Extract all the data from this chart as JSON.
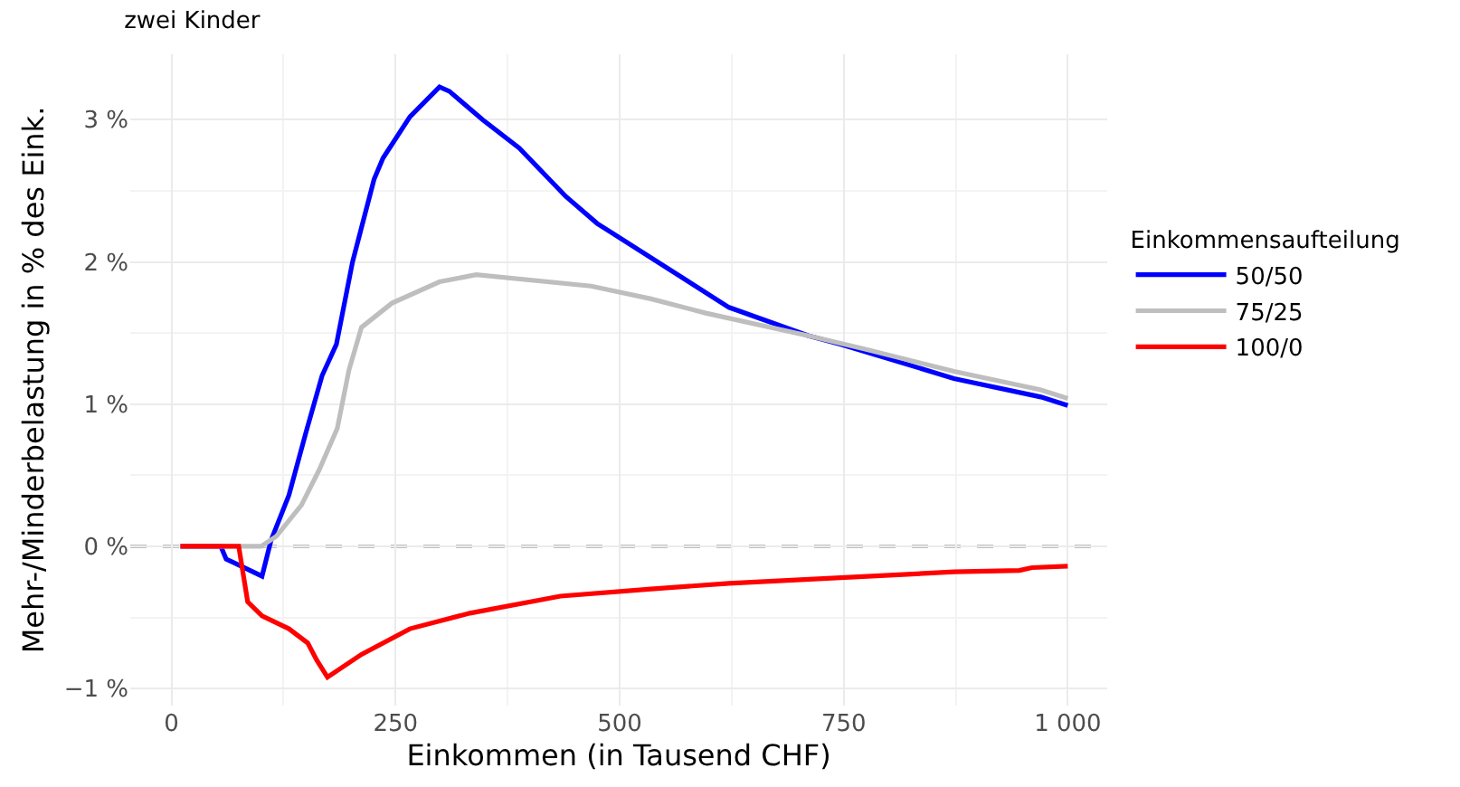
{
  "chart_data": {
    "type": "line",
    "title": "zwei Kinder",
    "xlabel": "Einkommen (in Tausend CHF)",
    "ylabel": "Mehr-/Minderbelastung in % des Eink.",
    "legend_title": "Einkommensaufteilung",
    "xlim": [
      -46,
      1044
    ],
    "ylim": [
      -1.12,
      3.46
    ],
    "xticks": [
      0,
      250,
      500,
      750,
      {
        "value": 1000,
        "label": "1 000"
      }
    ],
    "yticks": [
      {
        "value": -1,
        "label": "−1 %"
      },
      {
        "value": 0,
        "label": "0 %"
      },
      {
        "value": 1,
        "label": "1 %"
      },
      {
        "value": 2,
        "label": "2 %"
      },
      {
        "value": 3,
        "label": "3 %"
      }
    ],
    "grid": true,
    "legend": "right",
    "line_style": "solid",
    "marker": "none",
    "ref_lines": [
      {
        "axis": "y",
        "value": 0,
        "color": "#000000",
        "line_style": "dashed"
      }
    ],
    "series": [
      {
        "name": "50/50",
        "color": "#0000ff",
        "x": [
          10,
          55,
          61,
          101,
          111,
          131,
          150,
          168,
          184,
          202,
          226,
          236,
          266,
          299,
          310,
          347,
          388,
          440,
          475,
          622,
          711,
          747,
          873,
          970,
          1000
        ],
        "values": [
          0,
          0,
          -0.09,
          -0.21,
          0.04,
          0.36,
          0.8,
          1.2,
          1.42,
          2.0,
          2.58,
          2.73,
          3.02,
          3.23,
          3.2,
          3.0,
          2.8,
          2.46,
          2.27,
          1.68,
          1.48,
          1.42,
          1.18,
          1.05,
          0.99
        ]
      },
      {
        "name": "75/25",
        "color": "#bebebe",
        "x": [
          10,
          100,
          117,
          145,
          165,
          185,
          198,
          212,
          246,
          299,
          340,
          468,
          535,
          596,
          711,
          772,
          873,
          970,
          1000
        ],
        "values": [
          0,
          0,
          0.07,
          0.29,
          0.54,
          0.83,
          1.24,
          1.54,
          1.71,
          1.86,
          1.91,
          1.83,
          1.74,
          1.64,
          1.48,
          1.39,
          1.23,
          1.1,
          1.04
        ]
      },
      {
        "name": "100/0",
        "color": "#ff0000",
        "x": [
          10,
          75,
          85,
          101,
          131,
          152,
          162,
          174,
          212,
          266,
          333,
          434,
          535,
          622,
          873,
          946,
          960,
          1000
        ],
        "values": [
          0,
          0,
          -0.39,
          -0.49,
          -0.58,
          -0.68,
          -0.8,
          -0.92,
          -0.76,
          -0.58,
          -0.47,
          -0.35,
          -0.3,
          -0.26,
          -0.18,
          -0.17,
          -0.15,
          -0.14
        ]
      }
    ]
  }
}
